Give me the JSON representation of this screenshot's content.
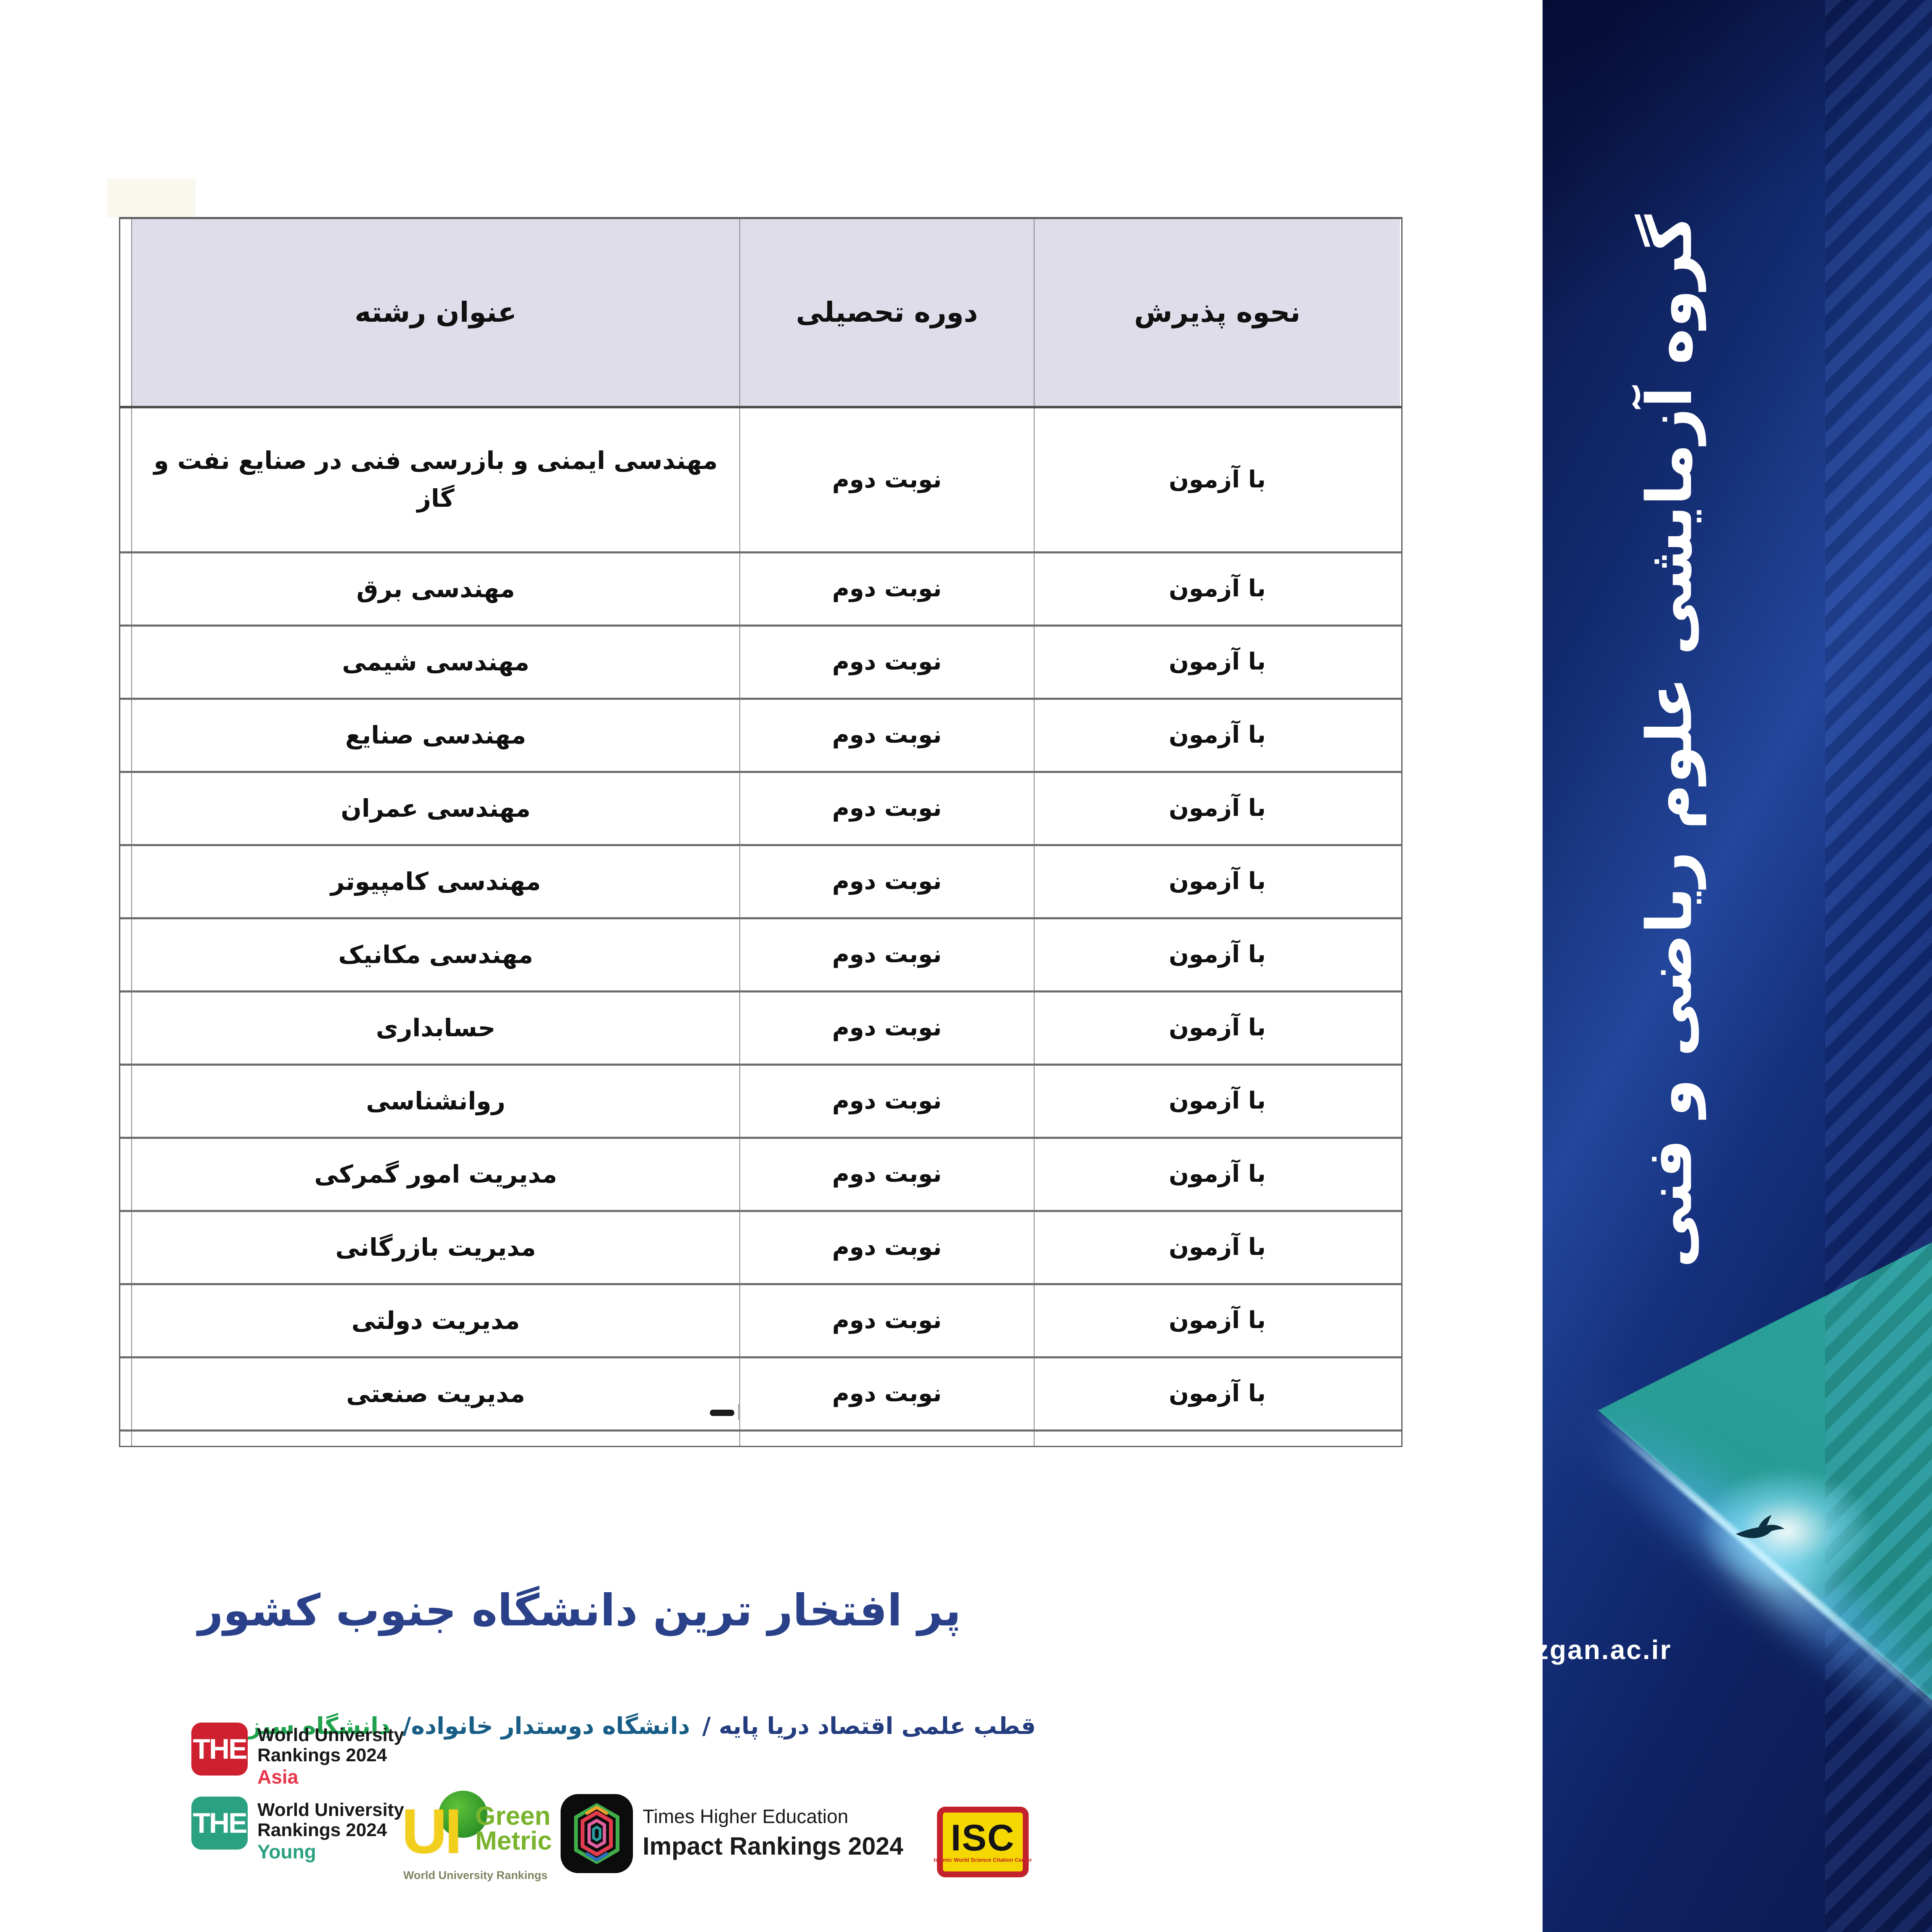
{
  "table": {
    "headers": {
      "field": "عنوان رشته",
      "term": "دوره تحصیلی",
      "admission": "نحوه پذیرش"
    },
    "rows": [
      {
        "field": "مهندسی ایمنی و بازرسی فنی در صنایع نفت و گاز",
        "term": "نوبت دوم",
        "admission": "با آزمون"
      },
      {
        "field": "مهندسی برق",
        "term": "نوبت دوم",
        "admission": "با آزمون"
      },
      {
        "field": "مهندسی شیمی",
        "term": "نوبت دوم",
        "admission": "با آزمون"
      },
      {
        "field": "مهندسی صنایع",
        "term": "نوبت دوم",
        "admission": "با آزمون"
      },
      {
        "field": "مهندسی عمران",
        "term": "نوبت دوم",
        "admission": "با آزمون"
      },
      {
        "field": "مهندسی کامپیوتر",
        "term": "نوبت دوم",
        "admission": "با آزمون"
      },
      {
        "field": "مهندسی مکانیک",
        "term": "نوبت دوم",
        "admission": "با آزمون"
      },
      {
        "field": "حسابداری",
        "term": "نوبت دوم",
        "admission": "با آزمون"
      },
      {
        "field": "روانشناسی",
        "term": "نوبت دوم",
        "admission": "با آزمون"
      },
      {
        "field": "مدیریت امور گمرکی",
        "term": "نوبت دوم",
        "admission": "با آزمون"
      },
      {
        "field": "مدیریت بازرگانی",
        "term": "نوبت دوم",
        "admission": "با آزمون"
      },
      {
        "field": "مدیریت دولتی",
        "term": "نوبت دوم",
        "admission": "با آزمون"
      },
      {
        "field": "مدیریت صنعتی",
        "term": "نوبت دوم",
        "admission": "با آزمون"
      }
    ]
  },
  "footer": {
    "heading": "پر افتخار ترین دانشگاه جنوب کشور",
    "tagline": {
      "part1": "قطب علمی اقتصاد دریا پایه /",
      "part2": "دانشگاه دوستدار خانواده/",
      "part3": "دانشگاه سبز"
    }
  },
  "logos": {
    "the_asia": {
      "the": "THE",
      "line1": "World University",
      "line2": "Rankings 2024",
      "region": "Asia"
    },
    "the_young": {
      "the": "THE",
      "line1": "World University",
      "line2": "Rankings 2024",
      "region": "Young"
    },
    "greenmetric": {
      "ui": "UI",
      "green": "Green",
      "metric": "Metric",
      "sub": "World University Rankings"
    },
    "impact": {
      "line1": "Times Higher Education",
      "line2": "Impact Rankings 2024"
    },
    "isc": {
      "text": "ISC",
      "sub": "Islamic World Science Citation Center"
    }
  },
  "sidebar": {
    "vertical_text": "گروه آزمایشی علوم ریاضی و فنی",
    "url": "zgan.ac.ir"
  },
  "colors": {
    "header_bg": "#e0ddeb",
    "heading": "#2a4189",
    "tagline_primary": "#233c7e",
    "tagline_secondary": "#175d86",
    "tagline_green": "#1fa14d",
    "the_red": "#cf2030",
    "the_region_red": "#e8374a",
    "the_green": "#2aa282",
    "isc_yellow": "#f5d800",
    "isc_red": "#c3212b",
    "greenmetric_yellow": "#f2cf1d",
    "greenmetric_green": "#7ab32e",
    "sidebar_navy": "#122a6e",
    "teal": "#2ba39b"
  }
}
